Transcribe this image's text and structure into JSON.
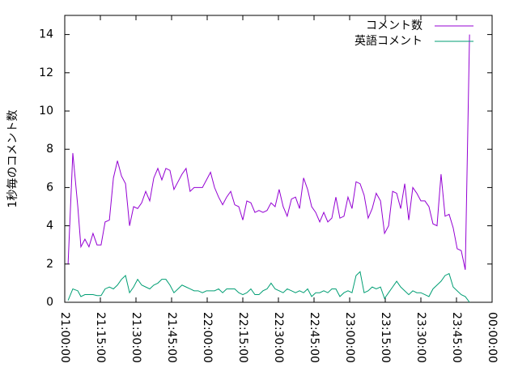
{
  "chart_data": {
    "type": "line",
    "y_label": "1秒毎のコメント数",
    "x": [
      1.4,
      3.4,
      5.5,
      6.8,
      8.5,
      10.2,
      11.9,
      13.6,
      15.3,
      17.0,
      18.8,
      20.5,
      22.2,
      23.9,
      25.6,
      27.3,
      29.0,
      30.7,
      32.4,
      34.1,
      35.8,
      37.5,
      39.2,
      40.9,
      42.6,
      44.3,
      46.0,
      47.7,
      49.4,
      51.1,
      52.8,
      54.5,
      56.2,
      58.0,
      59.7,
      61.4,
      63.1,
      64.8,
      66.5,
      68.2,
      69.9,
      71.6,
      73.3,
      75.0,
      76.7,
      78.4,
      80.1,
      81.8,
      83.5,
      85.2,
      86.9,
      88.6,
      90.3,
      92.0,
      93.7,
      95.5,
      97.2,
      98.9,
      100.6,
      102.3,
      104.0,
      105.7,
      107.4,
      109.1,
      110.8,
      112.5,
      114.2,
      115.9,
      117.6,
      119.3,
      121.0,
      122.7,
      124.4,
      126.1,
      127.8,
      129.5,
      131.2,
      133.0,
      134.7,
      136.4,
      138.1,
      139.8,
      141.5,
      143.2,
      144.9,
      146.6,
      148.3,
      150.0,
      151.7,
      153.4,
      155.1,
      156.8,
      158.5,
      160.2,
      161.9,
      163.6,
      165.3,
      167.0,
      168.7,
      170.5
    ],
    "series": [
      {
        "name": "コメント数",
        "color": "#9400d3",
        "values": [
          2.0,
          7.8,
          5.0,
          2.9,
          3.3,
          2.9,
          3.6,
          3.0,
          3.0,
          4.2,
          4.3,
          6.5,
          7.4,
          6.6,
          6.2,
          4.0,
          5.0,
          4.9,
          5.2,
          5.8,
          5.3,
          6.5,
          7.0,
          6.4,
          7.0,
          6.9,
          5.9,
          6.3,
          6.7,
          7.0,
          5.8,
          6.0,
          6.0,
          6.0,
          6.4,
          6.8,
          6.0,
          5.5,
          5.1,
          5.5,
          5.8,
          5.1,
          5.0,
          4.3,
          5.3,
          5.2,
          4.7,
          4.8,
          4.7,
          4.8,
          5.2,
          5.0,
          5.9,
          5.0,
          4.5,
          5.4,
          5.5,
          4.9,
          6.5,
          5.9,
          5.0,
          4.7,
          4.2,
          4.7,
          4.2,
          4.4,
          5.5,
          4.4,
          4.5,
          5.5,
          4.9,
          6.3,
          6.2,
          5.6,
          4.4,
          4.9,
          5.7,
          5.3,
          3.6,
          4.0,
          5.8,
          5.7,
          4.9,
          6.2,
          4.3,
          6.0,
          5.7,
          5.3,
          5.3,
          5.0,
          4.1,
          4.0,
          6.7,
          4.5,
          4.6,
          3.9,
          2.8,
          2.7,
          1.7,
          14.0
        ]
      },
      {
        "name": "英語コメント",
        "color": "#009e73",
        "values": [
          0.1,
          0.7,
          0.6,
          0.3,
          0.4,
          0.4,
          0.4,
          0.35,
          0.35,
          0.7,
          0.8,
          0.7,
          0.9,
          1.2,
          1.4,
          0.5,
          0.8,
          1.2,
          0.9,
          0.8,
          0.7,
          0.9,
          1.0,
          1.2,
          1.2,
          0.9,
          0.5,
          0.7,
          0.9,
          0.8,
          0.7,
          0.6,
          0.6,
          0.5,
          0.6,
          0.6,
          0.6,
          0.7,
          0.5,
          0.7,
          0.7,
          0.7,
          0.5,
          0.4,
          0.5,
          0.7,
          0.4,
          0.4,
          0.6,
          0.7,
          1.0,
          0.7,
          0.6,
          0.5,
          0.7,
          0.6,
          0.5,
          0.6,
          0.5,
          0.7,
          0.3,
          0.5,
          0.5,
          0.6,
          0.5,
          0.7,
          0.7,
          0.3,
          0.5,
          0.6,
          0.5,
          1.4,
          1.6,
          0.5,
          0.6,
          0.8,
          0.7,
          0.8,
          0.2,
          0.5,
          0.8,
          1.1,
          0.8,
          0.6,
          0.4,
          0.6,
          0.5,
          0.5,
          0.4,
          0.3,
          0.7,
          0.9,
          1.1,
          1.4,
          1.5,
          0.8,
          0.6,
          0.4,
          0.3,
          0.0
        ]
      }
    ],
    "xlim": [
      0,
      180
    ],
    "xticks": [
      {
        "value": 0,
        "label": "21:00:00"
      },
      {
        "value": 15,
        "label": "21:15:00"
      },
      {
        "value": 30,
        "label": "21:30:00"
      },
      {
        "value": 45,
        "label": "21:45:00"
      },
      {
        "value": 60,
        "label": "22:00:00"
      },
      {
        "value": 75,
        "label": "22:15:00"
      },
      {
        "value": 90,
        "label": "22:30:00"
      },
      {
        "value": 105,
        "label": "22:45:00"
      },
      {
        "value": 120,
        "label": "23:00:00"
      },
      {
        "value": 135,
        "label": "23:15:00"
      },
      {
        "value": 150,
        "label": "23:30:00"
      },
      {
        "value": 165,
        "label": "23:45:00"
      },
      {
        "value": 180,
        "label": "00:00:00"
      }
    ],
    "ylim": [
      0,
      15
    ],
    "yticks": [
      0,
      2,
      4,
      6,
      8,
      10,
      12,
      14
    ],
    "legend": "top right"
  }
}
